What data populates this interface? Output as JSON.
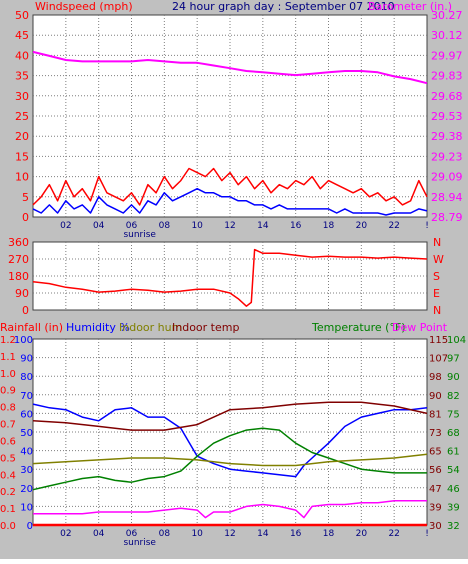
{
  "colors": {
    "wind": "#ff0000",
    "gust": "#ff0000",
    "avg": "#0000ff",
    "baro": "#ff00ff",
    "dir": "#ff0000",
    "rain": "#ff0000",
    "humidity": "#0000ff",
    "indoor_hum": "#808000",
    "indoor_temp": "#800000",
    "temperature": "#008000",
    "dewpoint": "#ff00ff",
    "bg": "#c0c0c0",
    "plot": "#ffffff",
    "grid": "#7f7f7f"
  },
  "header": {
    "wind_label": "Windspeed (mph)",
    "title": "24 hour graph day : September 07 2010",
    "baro_label": "Barometer (in.)"
  },
  "x_axis": {
    "hour_labels": [
      {
        "hour": 2,
        "label": "02"
      },
      {
        "hour": 4,
        "label": "04"
      },
      {
        "hour": 6,
        "label": "06"
      },
      {
        "hour": 8,
        "label": "08"
      },
      {
        "hour": 10,
        "label": "10"
      },
      {
        "hour": 12,
        "label": "12"
      },
      {
        "hour": 14,
        "label": "14"
      },
      {
        "hour": 16,
        "label": "16"
      },
      {
        "hour": 18,
        "label": "18"
      },
      {
        "hour": 20,
        "label": "20"
      },
      {
        "hour": 22,
        "label": "22"
      },
      {
        "hour": 24,
        "label": "!"
      }
    ],
    "sunrise_label": "sunrise",
    "sunrise_hour": 6.5
  },
  "chart_data": [
    {
      "type": "line",
      "name": "wind-barometer",
      "x_range": [
        0,
        24
      ],
      "left_axis": {
        "label": "Windspeed (mph)",
        "range": [
          0,
          50
        ],
        "ticks": [
          "0",
          "5",
          "10",
          "15",
          "20",
          "25",
          "30",
          "35",
          "40",
          "45",
          "50"
        ]
      },
      "right_axis": {
        "label": "Barometer (in.)",
        "range": [
          28.79,
          30.27
        ],
        "ticks": [
          "28.79",
          "28.94",
          "29.09",
          "29.23",
          "29.38",
          "29.53",
          "29.68",
          "29.83",
          "29.97",
          "30.12",
          "30.27"
        ]
      },
      "grid": true,
      "series": [
        {
          "key": "gust",
          "axis": "left",
          "x": [
            0,
            0.5,
            1,
            1.5,
            2,
            2.5,
            3,
            3.5,
            4,
            4.5,
            5,
            5.5,
            6,
            6.5,
            7,
            7.5,
            8,
            8.5,
            9,
            9.5,
            10,
            10.5,
            11,
            11.5,
            12,
            12.5,
            13,
            13.5,
            14,
            14.5,
            15,
            15.5,
            16,
            16.5,
            17,
            17.5,
            18,
            18.5,
            19,
            19.5,
            20,
            20.5,
            21,
            21.5,
            22,
            22.5,
            23,
            23.5,
            24
          ],
          "y": [
            3,
            5,
            8,
            4,
            9,
            5,
            7,
            4,
            10,
            6,
            5,
            4,
            6,
            3,
            8,
            6,
            10,
            7,
            9,
            12,
            11,
            10,
            12,
            9,
            11,
            8,
            10,
            7,
            9,
            6,
            8,
            7,
            9,
            8,
            10,
            7,
            9,
            8,
            7,
            6,
            7,
            5,
            6,
            4,
            5,
            3,
            4,
            9,
            5
          ]
        },
        {
          "key": "avg",
          "axis": "left",
          "x": [
            0,
            0.5,
            1,
            1.5,
            2,
            2.5,
            3,
            3.5,
            4,
            4.5,
            5,
            5.5,
            6,
            6.5,
            7,
            7.5,
            8,
            8.5,
            9,
            9.5,
            10,
            10.5,
            11,
            11.5,
            12,
            12.5,
            13,
            13.5,
            14,
            14.5,
            15,
            15.5,
            16,
            16.5,
            17,
            17.5,
            18,
            18.5,
            19,
            19.5,
            20,
            20.5,
            21,
            21.5,
            22,
            22.5,
            23,
            23.5,
            24
          ],
          "y": [
            2,
            1,
            3,
            1,
            4,
            2,
            3,
            1,
            5,
            3,
            2,
            1,
            3,
            1,
            4,
            3,
            6,
            4,
            5,
            6,
            7,
            6,
            6,
            5,
            5,
            4,
            4,
            3,
            3,
            2,
            3,
            2,
            2,
            2,
            2,
            2,
            2,
            1,
            2,
            1,
            1,
            1,
            1,
            0.5,
            1,
            1,
            1,
            2,
            1.5
          ]
        },
        {
          "key": "baro",
          "axis": "right",
          "x": [
            0,
            1,
            2,
            3,
            4,
            5,
            6,
            7,
            8,
            9,
            10,
            11,
            12,
            13,
            14,
            15,
            16,
            17,
            18,
            19,
            20,
            21,
            22,
            23,
            24
          ],
          "y": [
            30.0,
            29.97,
            29.94,
            29.93,
            29.93,
            29.93,
            29.93,
            29.94,
            29.93,
            29.92,
            29.92,
            29.9,
            29.88,
            29.86,
            29.85,
            29.84,
            29.83,
            29.84,
            29.85,
            29.86,
            29.86,
            29.85,
            29.82,
            29.8,
            29.77
          ]
        }
      ]
    },
    {
      "type": "line",
      "name": "wind-direction",
      "x_range": [
        0,
        24
      ],
      "left_axis": {
        "range": [
          0,
          360
        ],
        "ticks": [
          "0",
          "90",
          "180",
          "270",
          "360"
        ]
      },
      "right_axis": {
        "ticks": [
          "N",
          "E",
          "S",
          "W",
          "N"
        ]
      },
      "grid": true,
      "series": [
        {
          "key": "dir",
          "axis": "left",
          "x": [
            0,
            1,
            2,
            3,
            4,
            5,
            6,
            7,
            8,
            9,
            10,
            11,
            12,
            12.5,
            13,
            13.3,
            13.5,
            14,
            15,
            16,
            17,
            18,
            19,
            20,
            21,
            22,
            23,
            24
          ],
          "y": [
            150,
            140,
            120,
            110,
            95,
            100,
            110,
            105,
            95,
            100,
            110,
            110,
            90,
            60,
            20,
            40,
            320,
            300,
            300,
            290,
            280,
            285,
            280,
            280,
            275,
            280,
            275,
            270
          ]
        }
      ]
    },
    {
      "type": "line",
      "name": "humidity-temperature",
      "x_range": [
        0,
        24
      ],
      "legend": [
        "Rainfall (in)",
        "Humidity %",
        "Indoor hum",
        "Indoor temp",
        "Temperature (°F)",
        "Dew Point"
      ],
      "axes": {
        "rain": {
          "label": "Rainfall (in)",
          "ticks": [
            "0.0",
            "0.1",
            "0.2",
            "0.4",
            "0.5",
            "0.6",
            "0.7",
            "0.8",
            "0.9",
            "1.0",
            "1.1",
            "1.2"
          ]
        },
        "humidity": {
          "label": "Humidity %",
          "range": [
            0,
            100
          ],
          "ticks": [
            "0",
            "10",
            "20",
            "30",
            "40",
            "50",
            "60",
            "70",
            "80",
            "90",
            "100"
          ]
        },
        "temp_a": {
          "ticks": [
            "30",
            "39",
            "47",
            "56",
            "65",
            "73",
            "81",
            "90",
            "98",
            "107",
            "115"
          ]
        },
        "temp_b": {
          "label": "Temperature (°F)",
          "ticks": [
            "32",
            "39",
            "46",
            "54",
            "61",
            "68",
            "75",
            "82",
            "90",
            "97",
            "104"
          ]
        }
      },
      "grid": true,
      "series": [
        {
          "key": "humidity",
          "axis": "humidity",
          "x": [
            0,
            1,
            2,
            3,
            4,
            5,
            6,
            7,
            8,
            9,
            10,
            11,
            12,
            13,
            14,
            15,
            16,
            16.5,
            17,
            18,
            19,
            20,
            21,
            22,
            23,
            24
          ],
          "y": [
            65,
            63,
            62,
            58,
            56,
            62,
            63,
            58,
            58,
            52,
            37,
            33,
            30,
            29,
            28,
            27,
            26,
            32,
            36,
            44,
            53,
            58,
            60,
            62,
            62,
            63
          ]
        },
        {
          "key": "temperature",
          "axis": "humidity",
          "x": [
            0,
            1,
            2,
            3,
            4,
            5,
            6,
            7,
            8,
            9,
            10,
            11,
            12,
            13,
            14,
            15,
            16,
            17,
            18,
            19,
            20,
            21,
            22,
            23,
            24
          ],
          "y": [
            19,
            21,
            23,
            25,
            26,
            24,
            23,
            25,
            26,
            29,
            37,
            44,
            48,
            51,
            52,
            51,
            44,
            39,
            36,
            33,
            30,
            29,
            28,
            28,
            28
          ]
        },
        {
          "key": "indoor_temp",
          "axis": "humidity",
          "x": [
            0,
            2,
            4,
            6,
            8,
            10,
            12,
            14,
            16,
            18,
            20,
            22,
            24
          ],
          "y": [
            56,
            55,
            53,
            51,
            51,
            54,
            62,
            63,
            65,
            66,
            66,
            64,
            60
          ]
        },
        {
          "key": "indoor_hum",
          "axis": "humidity",
          "x": [
            0,
            2,
            4,
            6,
            8,
            10,
            12,
            14,
            16,
            18,
            20,
            22,
            24
          ],
          "y": [
            33,
            34,
            35,
            36,
            36,
            35,
            33,
            32,
            32,
            34,
            35,
            36,
            38
          ]
        },
        {
          "key": "dewpoint",
          "axis": "humidity",
          "x": [
            0,
            1,
            2,
            3,
            4,
            5,
            6,
            7,
            8,
            9,
            10,
            10.5,
            11,
            12,
            13,
            14,
            15,
            16,
            16.5,
            17,
            18,
            19,
            20,
            21,
            22,
            23,
            24
          ],
          "y": [
            6,
            6,
            6,
            6,
            7,
            7,
            7,
            7,
            8,
            9,
            8,
            4,
            7,
            7,
            10,
            11,
            10,
            8,
            4,
            10,
            11,
            11,
            12,
            12,
            13,
            13,
            13
          ]
        },
        {
          "key": "rain",
          "axis": "humidity",
          "x": [
            0,
            24
          ],
          "y": [
            0,
            0
          ]
        }
      ]
    }
  ],
  "panel3_legend": {
    "rain": "Rainfall (in)",
    "humidity": "Humidity %",
    "indoor_hum": "Indoor hum",
    "indoor_temp": "Indoor temp",
    "temperature": "Temperature (°F)",
    "dewpoint": "Dew Point"
  }
}
